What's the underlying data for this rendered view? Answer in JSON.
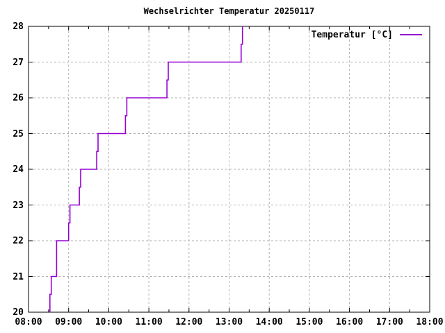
{
  "title": "Wechselrichter Temperatur 20250117",
  "legend": {
    "label": "Temperatur [°C]"
  },
  "colors": {
    "line": "#9400d3",
    "grid": "#b0b0b0",
    "axis": "#000000",
    "background": "#ffffff",
    "text": "#000000"
  },
  "chart_data": {
    "type": "line",
    "style": "steps",
    "title": "Wechselrichter Temperatur 20250117",
    "xlabel": "",
    "ylabel": "",
    "legend_position": "top-right-inside",
    "grid": true,
    "x_axis": {
      "min_hour": 8,
      "max_hour": 18,
      "major_tick_hours": 1,
      "minor_tick_hours": 0.5,
      "tick_labels": [
        "08:00",
        "09:00",
        "10:00",
        "11:00",
        "12:00",
        "13:00",
        "14:00",
        "15:00",
        "16:00",
        "17:00",
        "18:00"
      ]
    },
    "y_axis": {
      "min": 20,
      "max": 28,
      "major_tick_step": 1,
      "tick_labels": [
        "20",
        "21",
        "22",
        "23",
        "24",
        "25",
        "26",
        "27",
        "28"
      ]
    },
    "series": [
      {
        "name": "Temperatur [°C]",
        "color": "#9400d3",
        "points": [
          [
            "08:32",
            20
          ],
          [
            "08:32",
            20.5
          ],
          [
            "08:34",
            21
          ],
          [
            "08:42",
            22
          ],
          [
            "09:00",
            22.5
          ],
          [
            "09:02",
            23
          ],
          [
            "09:16",
            23.5
          ],
          [
            "09:18",
            24
          ],
          [
            "09:42",
            24.5
          ],
          [
            "09:44",
            25
          ],
          [
            "10:25",
            25.5
          ],
          [
            "10:27",
            26
          ],
          [
            "11:27",
            26.5
          ],
          [
            "11:29",
            27
          ],
          [
            "13:18",
            27.5
          ],
          [
            "13:20",
            28
          ]
        ]
      }
    ]
  }
}
